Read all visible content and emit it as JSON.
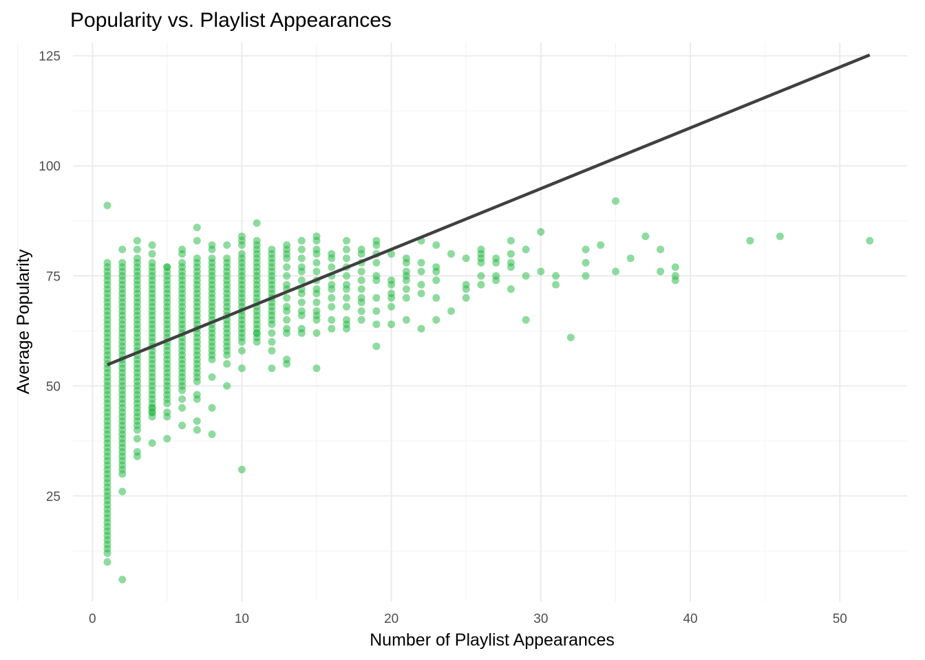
{
  "chart_data": {
    "type": "scatter",
    "title": "Popularity vs. Playlist Appearances",
    "xlabel": "Number of Playlist Appearances",
    "ylabel": "Average Popularity",
    "xlim": [
      -1.3,
      54.5
    ],
    "ylim": [
      1,
      128
    ],
    "x_ticks": [
      0,
      10,
      20,
      30,
      40,
      50
    ],
    "y_ticks": [
      25,
      50,
      75,
      100,
      125
    ],
    "x_tick_labels": [
      "0",
      "10",
      "20",
      "30",
      "40",
      "50"
    ],
    "y_tick_labels": [
      "25",
      "50",
      "75",
      "100",
      "125"
    ],
    "grid": true,
    "point_color": "#1db83e",
    "trend_line_color": "#404040",
    "trend_line": {
      "x": [
        1,
        52
      ],
      "y": [
        54.8,
        125.2
      ]
    },
    "columns": [
      {
        "x": 1,
        "ymin": 18,
        "ymax": 78
      },
      {
        "x": 2,
        "ymin": 31,
        "ymax": 78
      },
      {
        "x": 3,
        "ymin": 40,
        "ymax": 79
      },
      {
        "x": 4,
        "ymin": 43,
        "ymax": 78
      },
      {
        "x": 5,
        "ymin": 47,
        "ymax": 77
      },
      {
        "x": 6,
        "ymin": 49,
        "ymax": 78
      },
      {
        "x": 7,
        "ymin": 51,
        "ymax": 79
      },
      {
        "x": 8,
        "ymin": 56,
        "ymax": 79
      },
      {
        "x": 9,
        "ymin": 58,
        "ymax": 79
      },
      {
        "x": 10,
        "ymin": 60,
        "ymax": 80
      },
      {
        "x": 11,
        "ymin": 61,
        "ymax": 81
      },
      {
        "x": 12,
        "ymin": 64,
        "ymax": 81
      }
    ],
    "points": [
      [
        1,
        91
      ],
      [
        1,
        17
      ],
      [
        1,
        16
      ],
      [
        1,
        15
      ],
      [
        1,
        14
      ],
      [
        1,
        13
      ],
      [
        1,
        12
      ],
      [
        1,
        10
      ],
      [
        2,
        81
      ],
      [
        2,
        26
      ],
      [
        2,
        6
      ],
      [
        2,
        30
      ],
      [
        3,
        83
      ],
      [
        3,
        81
      ],
      [
        3,
        35
      ],
      [
        3,
        34
      ],
      [
        3,
        38
      ],
      [
        4,
        82
      ],
      [
        4,
        80
      ],
      [
        4,
        45
      ],
      [
        4,
        44
      ],
      [
        4,
        37
      ],
      [
        5,
        77
      ],
      [
        5,
        46
      ],
      [
        5,
        44
      ],
      [
        5,
        43
      ],
      [
        5,
        38
      ],
      [
        6,
        81
      ],
      [
        6,
        80
      ],
      [
        6,
        47
      ],
      [
        6,
        45
      ],
      [
        6,
        41
      ],
      [
        7,
        86
      ],
      [
        7,
        83
      ],
      [
        7,
        48
      ],
      [
        7,
        47
      ],
      [
        7,
        42
      ],
      [
        7,
        40
      ],
      [
        8,
        82
      ],
      [
        8,
        81
      ],
      [
        8,
        52
      ],
      [
        8,
        45
      ],
      [
        8,
        39
      ],
      [
        9,
        82
      ],
      [
        9,
        55
      ],
      [
        9,
        50
      ],
      [
        9,
        57
      ],
      [
        10,
        84
      ],
      [
        10,
        83
      ],
      [
        10,
        82
      ],
      [
        10,
        58
      ],
      [
        10,
        54
      ],
      [
        10,
        31
      ],
      [
        11,
        87
      ],
      [
        11,
        83
      ],
      [
        11,
        82
      ],
      [
        11,
        60
      ],
      [
        11,
        62
      ],
      [
        12,
        62
      ],
      [
        12,
        58
      ],
      [
        12,
        54
      ],
      [
        12,
        60
      ],
      [
        13,
        82
      ],
      [
        13,
        81
      ],
      [
        13,
        80
      ],
      [
        13,
        79
      ],
      [
        13,
        77
      ],
      [
        13,
        75
      ],
      [
        13,
        73
      ],
      [
        13,
        72
      ],
      [
        13,
        70
      ],
      [
        13,
        68
      ],
      [
        13,
        67
      ],
      [
        13,
        65
      ],
      [
        13,
        63
      ],
      [
        13,
        62
      ],
      [
        13,
        56
      ],
      [
        13,
        55
      ],
      [
        14,
        83
      ],
      [
        14,
        81
      ],
      [
        14,
        79
      ],
      [
        14,
        77
      ],
      [
        14,
        76
      ],
      [
        14,
        74
      ],
      [
        14,
        72
      ],
      [
        14,
        71
      ],
      [
        14,
        69
      ],
      [
        14,
        67
      ],
      [
        14,
        66
      ],
      [
        14,
        63
      ],
      [
        14,
        62
      ],
      [
        15,
        84
      ],
      [
        15,
        83
      ],
      [
        15,
        81
      ],
      [
        15,
        80
      ],
      [
        15,
        78
      ],
      [
        15,
        76
      ],
      [
        15,
        74
      ],
      [
        15,
        72
      ],
      [
        15,
        71
      ],
      [
        15,
        69
      ],
      [
        15,
        67
      ],
      [
        15,
        66
      ],
      [
        15,
        65
      ],
      [
        15,
        62
      ],
      [
        15,
        54
      ],
      [
        16,
        80
      ],
      [
        16,
        79
      ],
      [
        16,
        77
      ],
      [
        16,
        75
      ],
      [
        16,
        73
      ],
      [
        16,
        72
      ],
      [
        16,
        70
      ],
      [
        16,
        68
      ],
      [
        16,
        65
      ],
      [
        16,
        63
      ],
      [
        17,
        83
      ],
      [
        17,
        81
      ],
      [
        17,
        79
      ],
      [
        17,
        77
      ],
      [
        17,
        75
      ],
      [
        17,
        73
      ],
      [
        17,
        72
      ],
      [
        17,
        70
      ],
      [
        17,
        68
      ],
      [
        17,
        65
      ],
      [
        17,
        64
      ],
      [
        17,
        63
      ],
      [
        18,
        81
      ],
      [
        18,
        80
      ],
      [
        18,
        78
      ],
      [
        18,
        76
      ],
      [
        18,
        74
      ],
      [
        18,
        72
      ],
      [
        18,
        70
      ],
      [
        18,
        69
      ],
      [
        18,
        67
      ],
      [
        18,
        65
      ],
      [
        19,
        83
      ],
      [
        19,
        82
      ],
      [
        19,
        80
      ],
      [
        19,
        78
      ],
      [
        19,
        75
      ],
      [
        19,
        74
      ],
      [
        19,
        70
      ],
      [
        19,
        67
      ],
      [
        19,
        64
      ],
      [
        19,
        59
      ],
      [
        20,
        80
      ],
      [
        20,
        74
      ],
      [
        20,
        73
      ],
      [
        20,
        71
      ],
      [
        20,
        70
      ],
      [
        20,
        68
      ],
      [
        20,
        64
      ],
      [
        21,
        79
      ],
      [
        21,
        78
      ],
      [
        21,
        76
      ],
      [
        21,
        75
      ],
      [
        21,
        74
      ],
      [
        21,
        72
      ],
      [
        21,
        70
      ],
      [
        21,
        65
      ],
      [
        22,
        83
      ],
      [
        22,
        78
      ],
      [
        22,
        76
      ],
      [
        22,
        73
      ],
      [
        22,
        71
      ],
      [
        22,
        63
      ],
      [
        23,
        82
      ],
      [
        23,
        77
      ],
      [
        23,
        76
      ],
      [
        23,
        74
      ],
      [
        23,
        70
      ],
      [
        23,
        65
      ],
      [
        24,
        80
      ],
      [
        24,
        67
      ],
      [
        25,
        79
      ],
      [
        25,
        73
      ],
      [
        25,
        72
      ],
      [
        25,
        70
      ],
      [
        26,
        81
      ],
      [
        26,
        80
      ],
      [
        26,
        79
      ],
      [
        26,
        78
      ],
      [
        26,
        75
      ],
      [
        26,
        73
      ],
      [
        27,
        79
      ],
      [
        27,
        78
      ],
      [
        27,
        75
      ],
      [
        27,
        74
      ],
      [
        28,
        83
      ],
      [
        28,
        80
      ],
      [
        28,
        78
      ],
      [
        28,
        77
      ],
      [
        28,
        72
      ],
      [
        29,
        81
      ],
      [
        29,
        75
      ],
      [
        29,
        65
      ],
      [
        30,
        85
      ],
      [
        30,
        76
      ],
      [
        31,
        75
      ],
      [
        31,
        73
      ],
      [
        32,
        61
      ],
      [
        33,
        81
      ],
      [
        33,
        78
      ],
      [
        33,
        75
      ],
      [
        34,
        82
      ],
      [
        35,
        92
      ],
      [
        35,
        76
      ],
      [
        36,
        79
      ],
      [
        37,
        84
      ],
      [
        38,
        81
      ],
      [
        38,
        76
      ],
      [
        39,
        77
      ],
      [
        39,
        75
      ],
      [
        39,
        74
      ],
      [
        44,
        83
      ],
      [
        46,
        84
      ],
      [
        52,
        83
      ]
    ]
  }
}
